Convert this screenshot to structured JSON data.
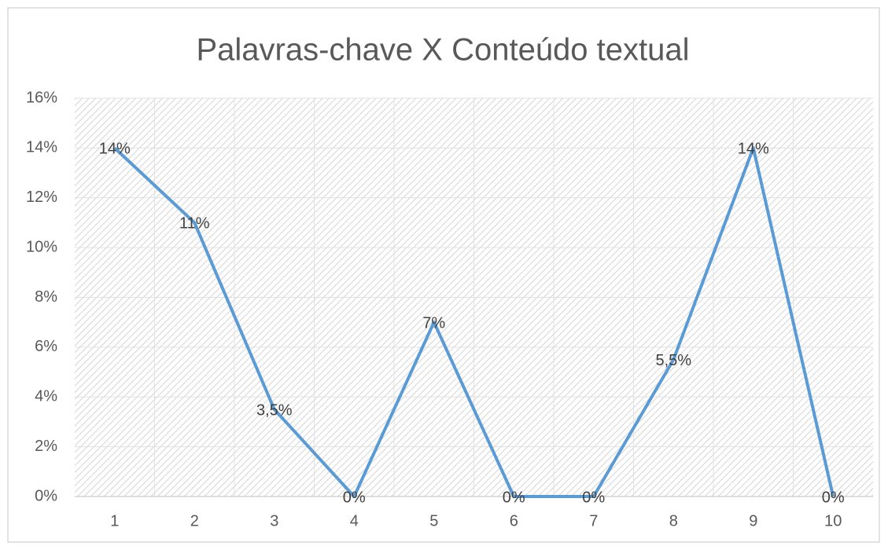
{
  "chart_data": {
    "type": "line",
    "title": "Palavras-chave X Conteúdo textual",
    "categories": [
      "1",
      "2",
      "3",
      "4",
      "5",
      "6",
      "7",
      "8",
      "9",
      "10"
    ],
    "values": [
      14,
      11,
      3.5,
      0,
      7,
      0,
      0,
      5.5,
      14,
      0
    ],
    "value_labels": [
      "14%",
      "11%",
      "3,5%",
      "0%",
      "7%",
      "0%",
      "0%",
      "5,5%",
      "14%",
      "0%"
    ],
    "color": "#5b9bd5",
    "ylim": [
      0,
      16
    ],
    "yticks": [
      {
        "value": 0,
        "label": "0%"
      },
      {
        "value": 2,
        "label": "2%"
      },
      {
        "value": 4,
        "label": "4%"
      },
      {
        "value": 6,
        "label": "6%"
      },
      {
        "value": 8,
        "label": "8%"
      },
      {
        "value": 10,
        "label": "10%"
      },
      {
        "value": 12,
        "label": "12%"
      },
      {
        "value": 14,
        "label": "14%"
      },
      {
        "value": 16,
        "label": "16%"
      }
    ],
    "grid": true
  }
}
